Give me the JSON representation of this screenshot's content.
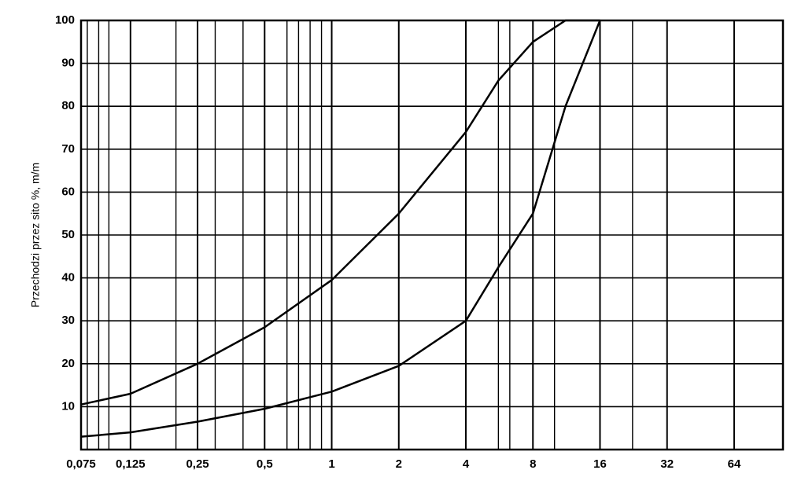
{
  "chart_data": {
    "type": "line",
    "y_label": "Przechodzi przez sito %, m/m",
    "log_x": true,
    "grid": true,
    "xlim": [
      0.075,
      106
    ],
    "ylim": [
      0,
      100
    ],
    "xticks": [
      {
        "value": 0.075,
        "label": "0,075"
      },
      {
        "value": 0.125,
        "label": "0,125"
      },
      {
        "value": 0.25,
        "label": "0,25"
      },
      {
        "value": 0.5,
        "label": "0,5"
      },
      1,
      2,
      4,
      8,
      16,
      32,
      64
    ],
    "xgrid": [
      0.08,
      0.09,
      0.1,
      0.2,
      0.3,
      0.4,
      0.63,
      0.71,
      0.8,
      0.9,
      5.6,
      6.3,
      10,
      22.4
    ],
    "yticks": [
      10,
      20,
      30,
      40,
      50,
      60,
      70,
      80,
      90,
      100
    ],
    "series": [
      {
        "color": "#000000",
        "x": [
          0.075,
          0.125,
          0.25,
          0.5,
          1,
          2,
          4,
          5.6,
          8,
          11.2,
          16
        ],
        "values": [
          10.5,
          13,
          20,
          28.5,
          39.5,
          55,
          74,
          86,
          95,
          100,
          100
        ]
      },
      {
        "color": "#000000",
        "x": [
          0.075,
          0.125,
          0.25,
          0.5,
          1,
          2,
          4,
          5.6,
          8,
          11.2,
          16
        ],
        "values": [
          3,
          4,
          6.5,
          9.5,
          13.5,
          19.5,
          30,
          42.5,
          55,
          80,
          100
        ]
      }
    ]
  }
}
